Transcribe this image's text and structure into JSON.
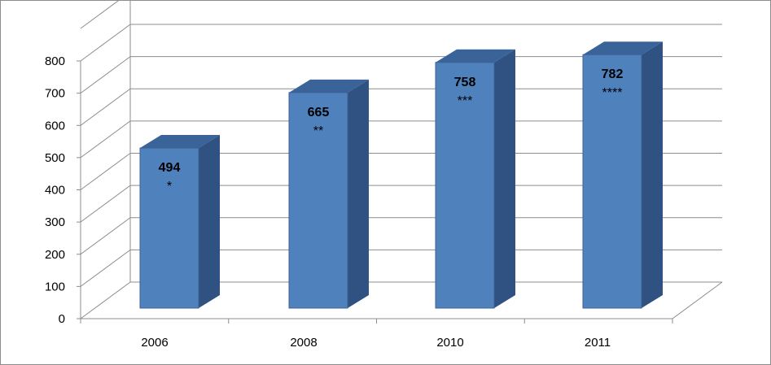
{
  "chart_data": {
    "type": "bar",
    "style": "3d-column",
    "categories": [
      "2006",
      "2008",
      "2010",
      "2011"
    ],
    "values": [
      494,
      665,
      758,
      782
    ],
    "value_notes": [
      "*",
      "**",
      "***",
      "****"
    ],
    "title": "",
    "xlabel": "",
    "ylabel": "",
    "ylim": [
      0,
      800
    ],
    "yticks": [
      0,
      100,
      200,
      300,
      400,
      500,
      600,
      700,
      800
    ],
    "grid": true,
    "legend": "none",
    "colors": {
      "bar_front": "#4f81bd",
      "bar_side": "#2f5282",
      "bar_top": "#3a639a",
      "bar_edge": "#3c6294",
      "grid": "#8c8c8c",
      "axis": "#8c8c8c",
      "frame": "#8c8c8c"
    }
  }
}
